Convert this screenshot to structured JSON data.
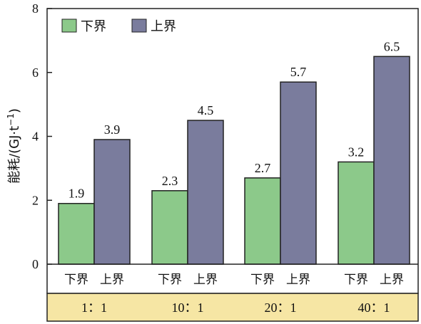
{
  "chart_data": {
    "type": "bar",
    "ylabel_main": "能耗/(GJ·t",
    "ylabel_sup": "−1",
    "ylabel_close": ")",
    "ylim": [
      0,
      8
    ],
    "yticks": [
      "0",
      "2",
      "4",
      "6",
      "8"
    ],
    "ytick_values": [
      0,
      2,
      4,
      6,
      8
    ],
    "categories": [
      "1：1",
      "10：1",
      "20：1",
      "40：1"
    ],
    "bar_sublabels": [
      "下界",
      "上界"
    ],
    "series": [
      {
        "name": "下界",
        "color": "#8cc98a",
        "values": [
          1.9,
          2.3,
          2.7,
          3.2
        ],
        "labels": [
          "1.9",
          "2.3",
          "2.7",
          "3.2"
        ]
      },
      {
        "name": "上界",
        "color": "#7a7c9d",
        "values": [
          3.9,
          4.5,
          5.7,
          6.5
        ],
        "labels": [
          "3.9",
          "4.5",
          "5.7",
          "6.5"
        ]
      }
    ],
    "legend_position": "top-left",
    "category_band_color": "#f6e6a4",
    "grid": false
  }
}
